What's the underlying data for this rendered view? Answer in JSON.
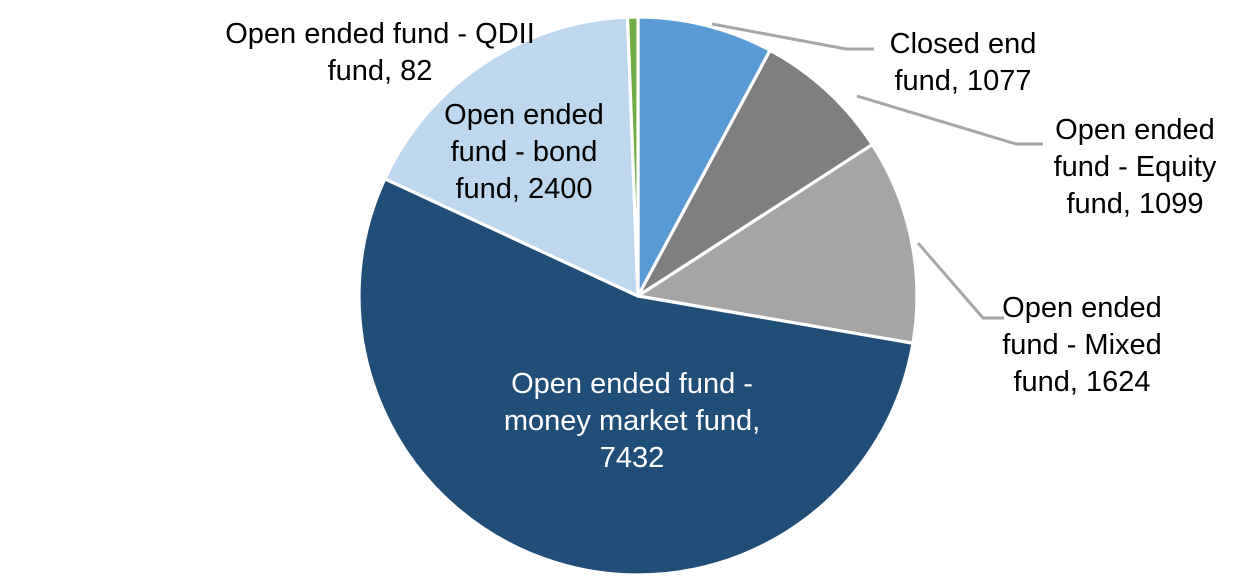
{
  "chart_data": {
    "type": "pie",
    "title": "",
    "legend": "none",
    "direction": "clockwise",
    "start_angle_deg": 0,
    "total": 13714,
    "leader_line_color": "#A6A6A6",
    "slices": [
      {
        "key": "closed",
        "label": "Closed end fund",
        "value": 1077,
        "color": "#5B9BD5"
      },
      {
        "key": "equity",
        "label": "Open ended fund - Equity fund",
        "value": 1099,
        "color": "#7F7F7F"
      },
      {
        "key": "mixed",
        "label": "Open ended fund - Mixed fund",
        "value": 1624,
        "color": "#A5A5A5"
      },
      {
        "key": "money",
        "label": "Open ended fund - money market fund",
        "value": 7432,
        "color": "#1F4E79"
      },
      {
        "key": "bond",
        "label": "Open ended fund - bond fund",
        "value": 2400,
        "color": "#BDD7EE"
      },
      {
        "key": "qdii",
        "label": "Open ended fund - QDII fund",
        "value": 82,
        "color": "#70AD47"
      }
    ]
  },
  "callouts": {
    "qdii": {
      "lines": [
        "Open ended fund - QDII",
        "fund, 82"
      ]
    },
    "bond": {
      "lines": [
        "Open ended",
        "fund - bond",
        "fund, 2400"
      ]
    },
    "closed": {
      "lines": [
        "Closed end",
        "fund, 1077"
      ]
    },
    "equity": {
      "lines": [
        "Open ended",
        "fund - Equity",
        "fund, 1099"
      ]
    },
    "mixed": {
      "lines": [
        "Open ended",
        "fund - Mixed",
        "fund, 1624"
      ]
    },
    "money": {
      "lines": [
        "Open ended fund -",
        "money market fund,",
        "7432"
      ]
    }
  },
  "colors": {
    "label_text": "#000000",
    "inner_label_text": "#FFFFFF",
    "background": "#FFFFFF",
    "slice_border": "#FFFFFF"
  }
}
